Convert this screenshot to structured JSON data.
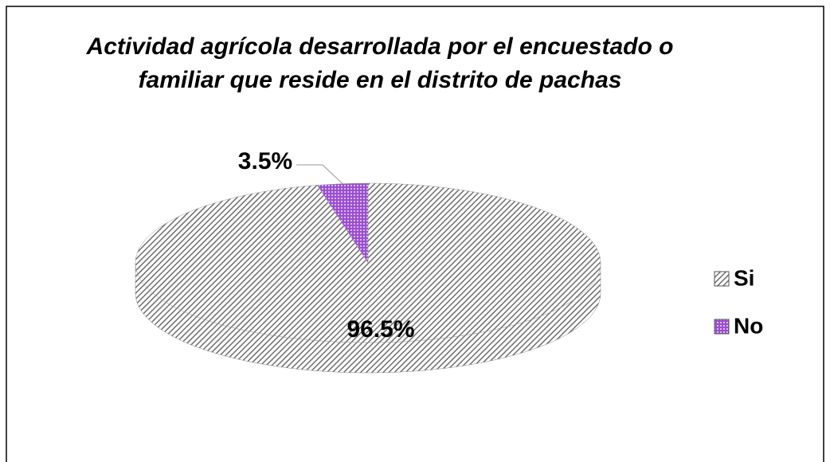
{
  "chart_data": {
    "type": "pie",
    "title": "Actividad agrícola desarrollada por el encuestado o familiar que reside en el distrito de pachas",
    "categories": [
      "Si",
      "No"
    ],
    "values": [
      96.5,
      3.5
    ],
    "value_labels": [
      "96.5%",
      "3.5%"
    ],
    "colors": [
      "#6e6e6e",
      "#9b4fd0"
    ],
    "legend": "right"
  }
}
